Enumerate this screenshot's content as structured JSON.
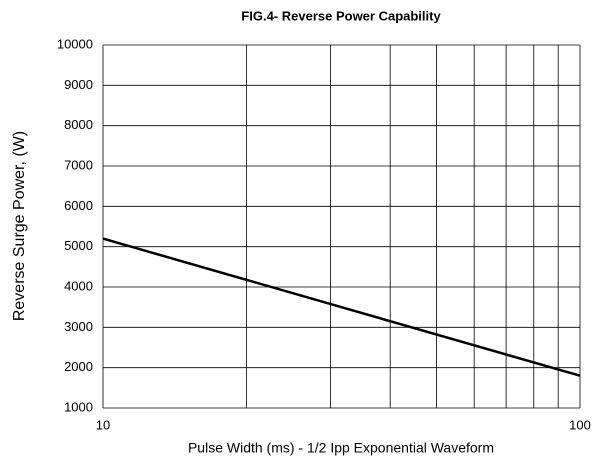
{
  "chart_data": {
    "type": "line",
    "title": "FIG.4- Reverse Power Capability",
    "xlabel": "Pulse Width (ms) - 1/2 Ipp Exponential Waveform",
    "ylabel": "Reverse Surge Power, (W)",
    "x": [
      10,
      100
    ],
    "series": [
      {
        "color": "#000000",
        "values": [
          5200,
          1800
        ]
      }
    ],
    "xscale": "log",
    "xlim": [
      10,
      100
    ],
    "xticks": [
      10,
      100
    ],
    "xminor": [
      20,
      30,
      40,
      50,
      60,
      70,
      80,
      90
    ],
    "ylim": [
      1000,
      10000
    ],
    "yticks": [
      1000,
      2000,
      3000,
      4000,
      5000,
      6000,
      7000,
      8000,
      9000,
      10000
    ],
    "grid": true
  }
}
